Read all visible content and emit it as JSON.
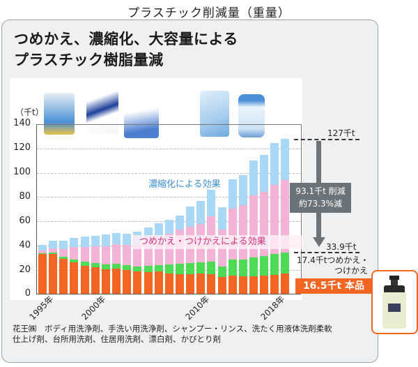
{
  "page_title": "プラスチック削減量（重量）",
  "headline": {
    "line1": "つめかえ、濃縮化、大容量による",
    "line2": "プラスチック樹脂量減"
  },
  "chart_data": {
    "type": "bar",
    "stacked": true,
    "title": "プラスチック削減量（重量）",
    "ylabel": "（千t）",
    "xlabel": "",
    "ylim": [
      0,
      140
    ],
    "yticks": [
      0,
      20,
      40,
      60,
      80,
      100,
      120,
      140
    ],
    "grid": true,
    "categories": [
      "1995",
      "1996",
      "1997",
      "1998",
      "1999",
      "2000",
      "2001",
      "2002",
      "2003",
      "2004",
      "2005",
      "2006",
      "2007",
      "2008",
      "2009",
      "2010",
      "2011",
      "2012",
      "2013",
      "2014",
      "2015",
      "2016",
      "2017",
      "2018"
    ],
    "x_tick_labels": [
      {
        "index": 0,
        "label": "1995年"
      },
      {
        "index": 5,
        "label": "2000年"
      },
      {
        "index": 15,
        "label": "2010年"
      },
      {
        "index": 23,
        "label": "2018年"
      }
    ],
    "series": [
      {
        "name": "本品",
        "color": "#f26522",
        "values": [
          32.6,
          32.6,
          28.6,
          25.5,
          23.0,
          21.5,
          20.0,
          20.4,
          19.2,
          18.3,
          17.7,
          18.1,
          16.6,
          16.2,
          16.2,
          16.6,
          15.8,
          13.5,
          14.7,
          14.1,
          14.3,
          15.0,
          15.4,
          16.5
        ]
      },
      {
        "name": "つめかえ・つけかえ",
        "color": "#4ddb55",
        "values": [
          0.7,
          1.1,
          1.5,
          2.7,
          3.3,
          3.6,
          4.2,
          4.2,
          4.2,
          4.0,
          5.0,
          5.3,
          7.4,
          8.4,
          8.9,
          8.9,
          10.7,
          8.8,
          13.5,
          14.1,
          15.4,
          15.7,
          17.0,
          17.4
        ]
      },
      {
        "name": "つめかえ・つけかえによる効果",
        "color": "#f2b3d6",
        "values": [
          1.9,
          3.4,
          6.5,
          10.3,
          12.2,
          13.6,
          14.8,
          16.0,
          16.8,
          18.5,
          23.4,
          23.3,
          25.0,
          27.8,
          29.8,
          31.5,
          36.9,
          30.5,
          41.5,
          44.4,
          50.9,
          52.5,
          56.7,
          59.1
        ]
      },
      {
        "name": "濃縮化による効果",
        "color": "#a8d8f5",
        "values": [
          5.0,
          6.1,
          6.8,
          7.4,
          8.2,
          8.9,
          9.4,
          9.3,
          8.8,
          10.1,
          8.0,
          11.2,
          11.6,
          11.6,
          16.3,
          18.8,
          21.7,
          18.1,
          24.0,
          24.4,
          28.7,
          30.7,
          34.5,
          34.0
        ]
      }
    ],
    "totals": [
      40.2,
      43.2,
      43.4,
      45.9,
      46.7,
      47.6,
      48.4,
      49.9,
      49.0,
      50.9,
      54.1,
      57.9,
      60.6,
      64.0,
      71.2,
      75.8,
      85.1,
      70.9,
      93.7,
      97.0,
      109.3,
      113.9,
      123.6,
      127.0
    ],
    "annotations": [
      {
        "text": "濃縮化による効果",
        "color": "#3a8fd6"
      },
      {
        "text": "つめかえ・つけかえによる効果",
        "color": "#d4307c"
      },
      {
        "text": "127千t"
      },
      {
        "text": "93.1千t 削減"
      },
      {
        "text": "約73.3%減"
      },
      {
        "text": "33.9千t"
      },
      {
        "text": "17.4千tつめかえ・つけかえ"
      },
      {
        "text": "16.5千t 本品"
      }
    ]
  },
  "axis": {
    "unit": "（千t）",
    "yticks": [
      "140",
      "120",
      "100",
      "80",
      "60",
      "40",
      "20",
      "0"
    ],
    "xlabels": [
      "1995年",
      "2000年",
      "2010年",
      "2018年"
    ]
  },
  "labels": {
    "concentration_effect": "濃縮化による効果",
    "refill_effect": "つめかえ・つけかえによる効果"
  },
  "right_panel": {
    "total_2018": "127千t",
    "reduction_line1": "93.1千t 削減",
    "reduction_line2": "約73.3%減",
    "actual": "33.9千t",
    "refill_line1": "17.4千tつめかえ・",
    "refill_line2": "つけかえ",
    "main_product": "16.5千t 本品"
  },
  "colors": {
    "main": "#f26522",
    "refill": "#4ddb55",
    "refill_effect": "#f2b3d6",
    "concentration": "#a8d8f5",
    "panel_bg": "#eef0f2"
  },
  "footnote": {
    "line1": "花王㈱　ボディ用洗浄剤、手洗い用洗浄剤、シャンプー・リンス、洗たく用液体洗剤柔軟",
    "line2": "仕上げ剤、台所用洗剤、住居用洗剤、漂白剤、かびとり剤"
  }
}
